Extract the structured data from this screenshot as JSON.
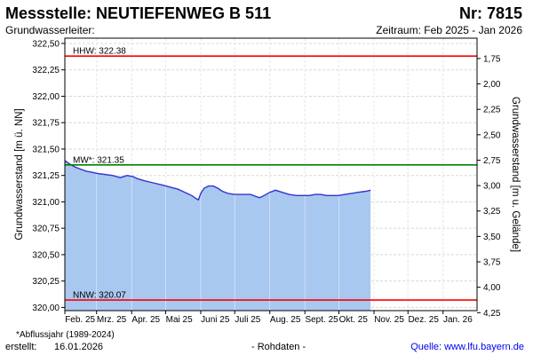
{
  "header": {
    "title": "Messstelle: NEUTIEFENWEG B 511",
    "nr": "Nr: 7815",
    "aquifer_label": "Grundwasserleiter:",
    "period": "Zeitraum: Feb 2025 - Jan 2026"
  },
  "footer": {
    "footnote": "Abflussjahr (1989-2024)",
    "footnote_star": "*",
    "created_label": "erstellt:",
    "created_date": "16.01.2026",
    "raw_data": "- Rohdaten -",
    "source": "Quelle: www.lfu.bayern.de"
  },
  "colors": {
    "fill": "#a8c8f0",
    "line": "#3333cc",
    "hhw": "#ff0000",
    "mw": "#008000",
    "nnw": "#ff0000",
    "grid": "#d8d8d8"
  },
  "chart_data": {
    "type": "area",
    "title": "Messstelle: NEUTIEFENWEG B 511",
    "ylabel": "Grundwasserstand [m ü. NN]",
    "y2label": "Grundwasserstand [m u. Gelände]",
    "ylim": [
      319.97,
      322.55
    ],
    "y2lim": [
      1.55,
      4.23
    ],
    "yticks": [
      320.0,
      320.25,
      320.5,
      320.75,
      321.0,
      321.25,
      321.5,
      321.75,
      322.0,
      322.25,
      322.5
    ],
    "ytick_labels": [
      "320,00",
      "320,25",
      "320,50",
      "320,75",
      "321,00",
      "321,25",
      "321,50",
      "321,75",
      "322,00",
      "322,25",
      "322,50"
    ],
    "y2ticks": [
      1.75,
      2.0,
      2.25,
      2.5,
      2.75,
      3.0,
      3.25,
      3.5,
      3.75,
      4.0,
      4.25
    ],
    "y2tick_labels": [
      "1,75",
      "2,00",
      "2,25",
      "2,50",
      "2,75",
      "3,00",
      "3,25",
      "3,50",
      "3,75",
      "4,00",
      "4,25"
    ],
    "xlim": [
      "2025-02-01",
      "2026-01-31"
    ],
    "xtick_dates": [
      "2025-02-01",
      "2025-03-01",
      "2025-04-01",
      "2025-05-01",
      "2025-06-01",
      "2025-07-01",
      "2025-08-01",
      "2025-09-01",
      "2025-10-01",
      "2025-11-01",
      "2025-12-01",
      "2026-01-01"
    ],
    "xtick_labels": [
      "Feb. 25",
      "Mrz. 25",
      "Apr. 25",
      "Mai 25",
      "Juni 25",
      "Juli 25",
      "Aug. 25",
      "Sept. 25",
      "Okt. 25",
      "Nov. 25",
      "Dez. 25",
      "Jan. 26"
    ],
    "reference_lines": [
      {
        "name": "HHW",
        "label": "HHW: 322.38",
        "value": 322.38
      },
      {
        "name": "MW*",
        "label": "MW*: 321.35",
        "value": 321.35
      },
      {
        "name": "NNW",
        "label": "NNW: 320.07",
        "value": 320.07
      }
    ],
    "series": [
      {
        "x": [
          "2025-02-01",
          "2025-02-05",
          "2025-02-10",
          "2025-02-15",
          "2025-02-20",
          "2025-02-25",
          "2025-03-01",
          "2025-03-08",
          "2025-03-15",
          "2025-03-22",
          "2025-03-28",
          "2025-04-02",
          "2025-04-06",
          "2025-04-12",
          "2025-04-20",
          "2025-04-28",
          "2025-05-05",
          "2025-05-12",
          "2025-05-18",
          "2025-05-24",
          "2025-05-28",
          "2025-05-30",
          "2025-06-01",
          "2025-06-04",
          "2025-06-08",
          "2025-06-12",
          "2025-06-16",
          "2025-06-20",
          "2025-06-25",
          "2025-07-01",
          "2025-07-08",
          "2025-07-15",
          "2025-07-20",
          "2025-07-23",
          "2025-07-27",
          "2025-08-01",
          "2025-08-06",
          "2025-08-12",
          "2025-08-18",
          "2025-08-25",
          "2025-09-01",
          "2025-09-05",
          "2025-09-10",
          "2025-09-15",
          "2025-09-20",
          "2025-09-25",
          "2025-10-01",
          "2025-10-06",
          "2025-10-12",
          "2025-10-18",
          "2025-10-25",
          "2025-10-29"
        ],
        "values": [
          321.39,
          321.36,
          321.33,
          321.31,
          321.29,
          321.28,
          321.27,
          321.26,
          321.25,
          321.23,
          321.25,
          321.24,
          321.22,
          321.2,
          321.18,
          321.16,
          321.14,
          321.12,
          321.09,
          321.06,
          321.03,
          321.02,
          321.08,
          321.13,
          321.15,
          321.15,
          321.13,
          321.1,
          321.08,
          321.07,
          321.07,
          321.07,
          321.05,
          321.04,
          321.06,
          321.09,
          321.11,
          321.09,
          321.07,
          321.06,
          321.06,
          321.06,
          321.07,
          321.07,
          321.06,
          321.06,
          321.06,
          321.07,
          321.08,
          321.09,
          321.1,
          321.11
        ]
      }
    ]
  }
}
